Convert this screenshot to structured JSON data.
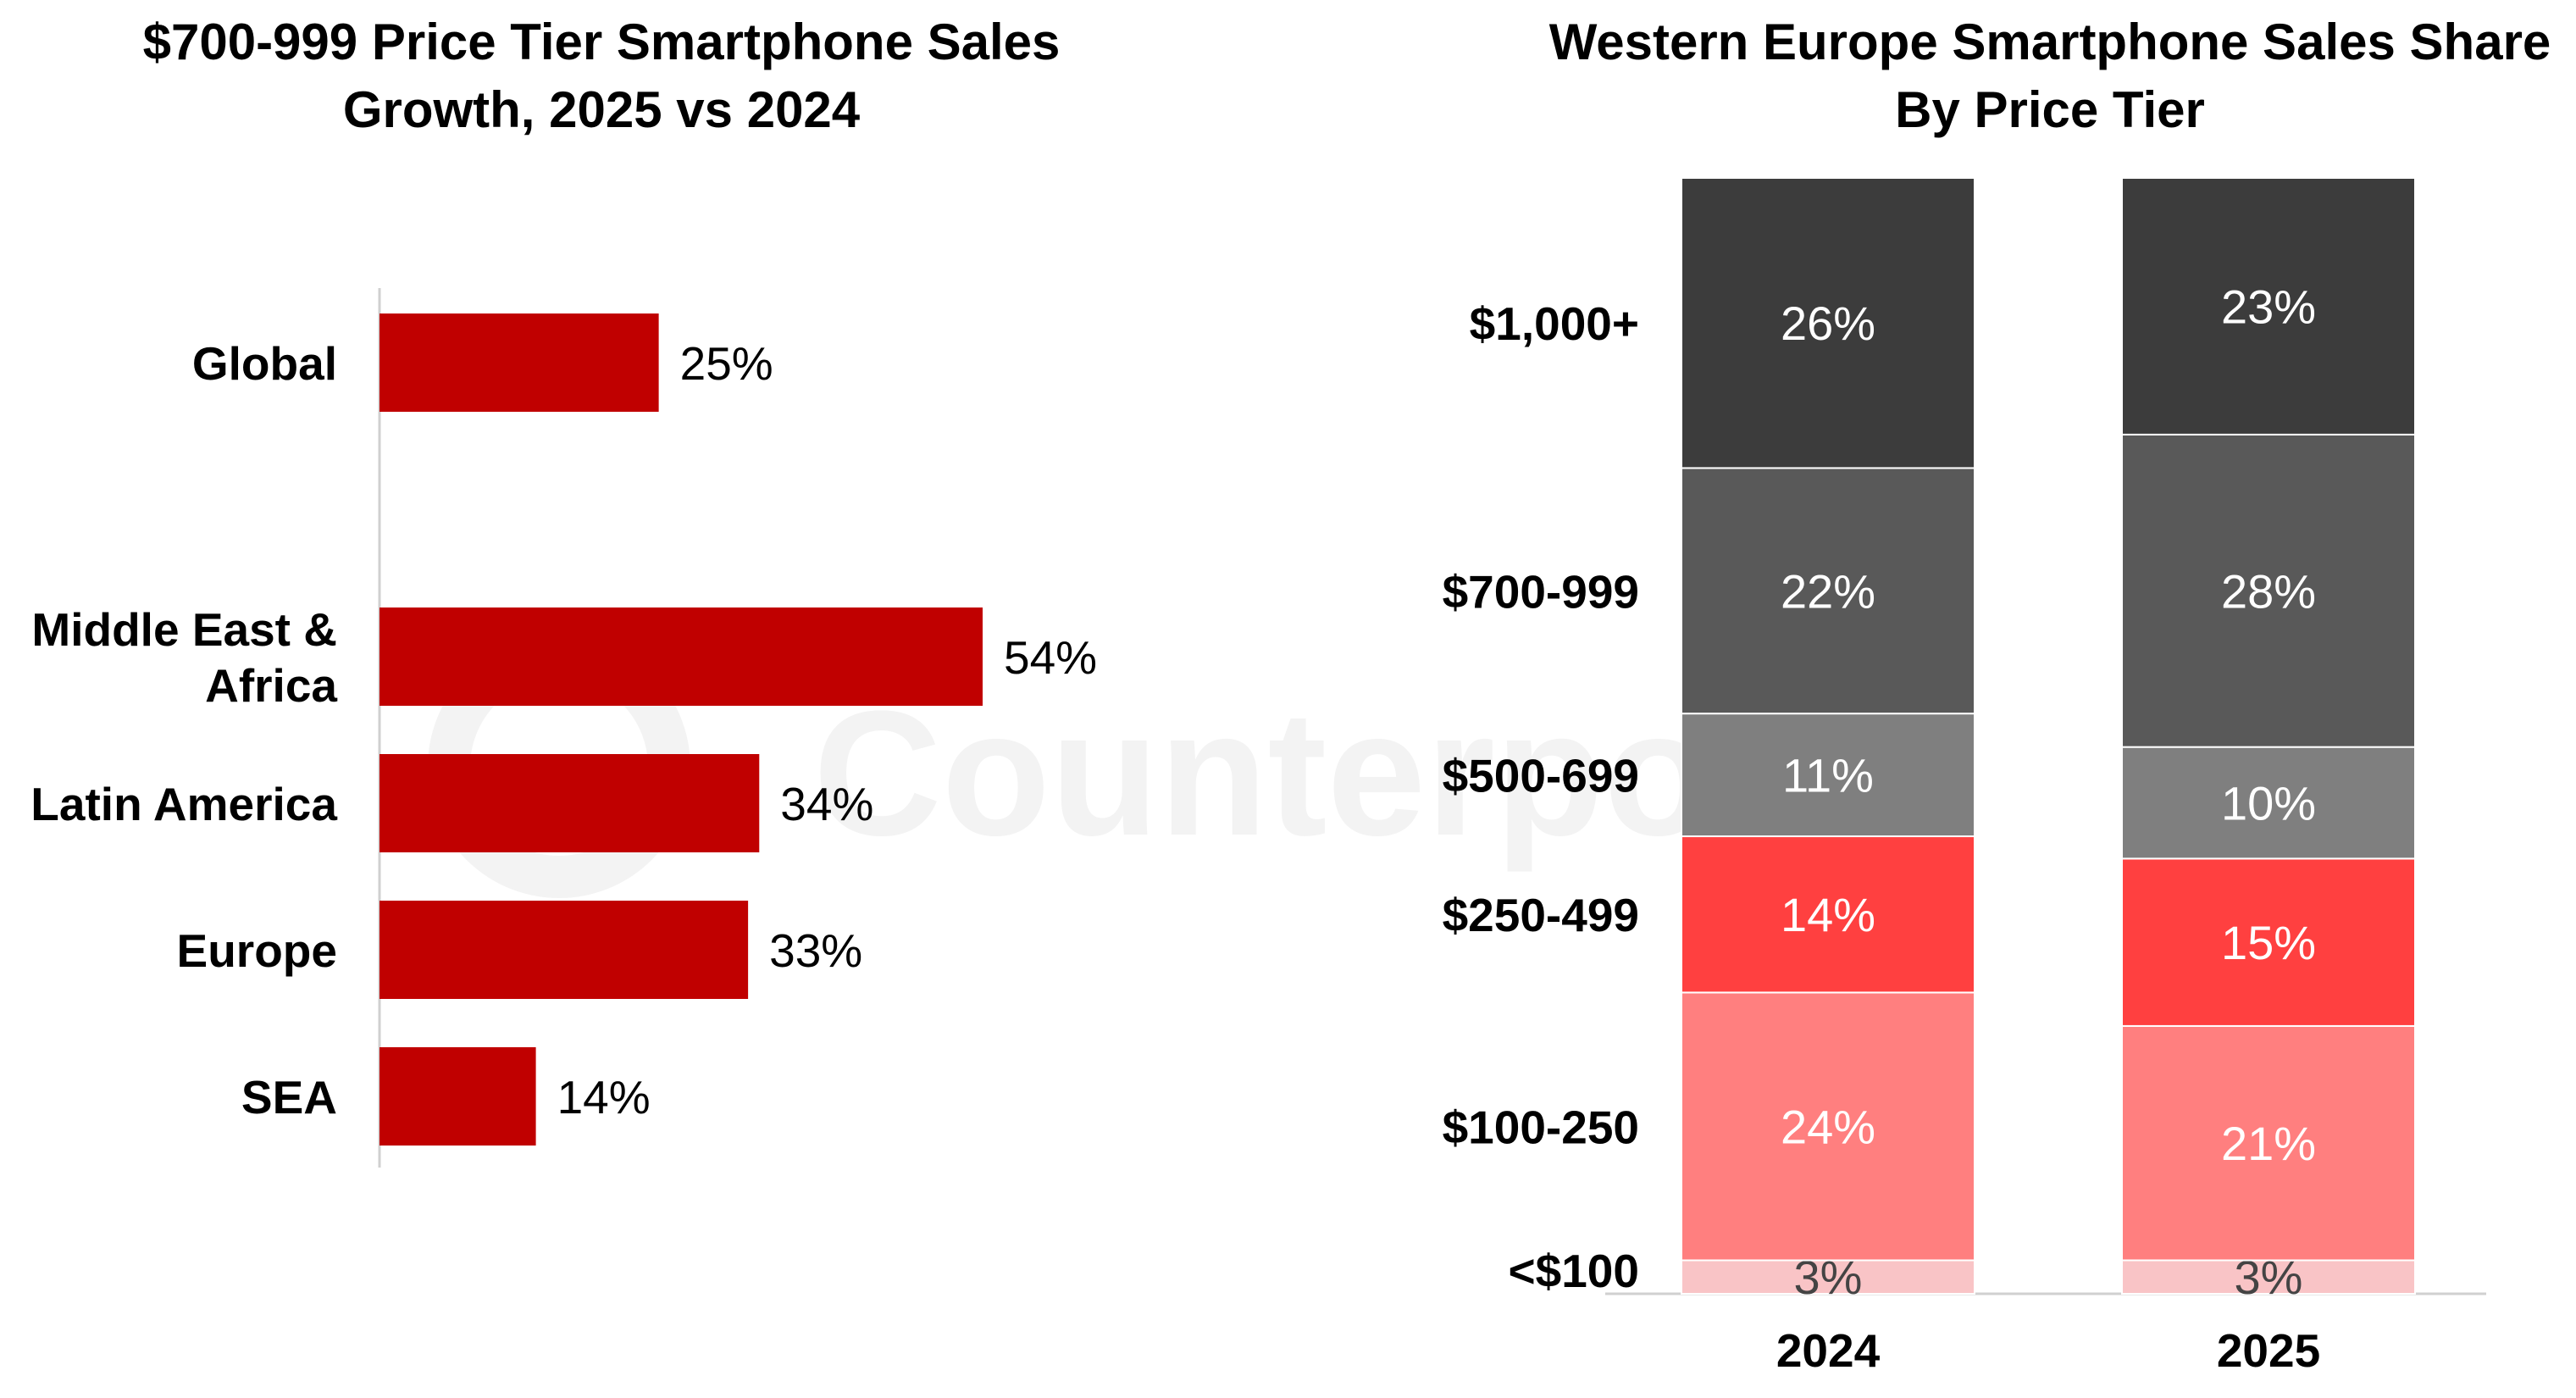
{
  "watermark": "Counterpoint",
  "chart_data": [
    {
      "type": "bar",
      "orientation": "horizontal",
      "title_lines": [
        "$700-999 Price Tier Smartphone Sales",
        "Growth, 2025 vs 2024"
      ],
      "categories": [
        [
          "Global"
        ],
        [
          "Middle East &",
          "Africa"
        ],
        [
          "Latin America"
        ],
        [
          "Europe"
        ],
        [
          "SEA"
        ]
      ],
      "values": [
        25,
        54,
        34,
        33,
        14
      ],
      "value_labels": [
        "25%",
        "54%",
        "34%",
        "33%",
        "14%"
      ],
      "xlim": [
        0,
        60
      ],
      "color": "#C00000"
    },
    {
      "type": "bar",
      "stacked": true,
      "title_lines": [
        "Western Europe Smartphone Sales Share",
        "By Price Tier"
      ],
      "categories": [
        "2024",
        "2025"
      ],
      "tiers": [
        "$1,000+",
        "$700-999",
        "$500-699",
        "$250-499",
        "$100-250",
        "<$100"
      ],
      "series": [
        {
          "name": "<$100",
          "values": [
            3,
            3
          ],
          "labels": [
            "3%",
            "3%"
          ],
          "color": "#F9C4C6",
          "text_color": "#444444"
        },
        {
          "name": "$100-250",
          "values": [
            24,
            21
          ],
          "labels": [
            "24%",
            "21%"
          ],
          "color": "#FF7F7F",
          "text_color": "#ffffff"
        },
        {
          "name": "$250-499",
          "values": [
            14,
            15
          ],
          "labels": [
            "14%",
            "15%"
          ],
          "color": "#FF4040",
          "text_color": "#ffffff"
        },
        {
          "name": "$500-699",
          "values": [
            11,
            10
          ],
          "labels": [
            "11%",
            "10%"
          ],
          "color": "#7F7F7F",
          "text_color": "#ffffff"
        },
        {
          "name": "$700-999",
          "values": [
            22,
            28
          ],
          "labels": [
            "22%",
            "28%"
          ],
          "color": "#595959",
          "text_color": "#ffffff"
        },
        {
          "name": "$1,000+",
          "values": [
            26,
            23
          ],
          "labels": [
            "26%",
            "23%"
          ],
          "color": "#3C3C3C",
          "text_color": "#ffffff"
        }
      ],
      "ylim": [
        0,
        100
      ]
    }
  ]
}
